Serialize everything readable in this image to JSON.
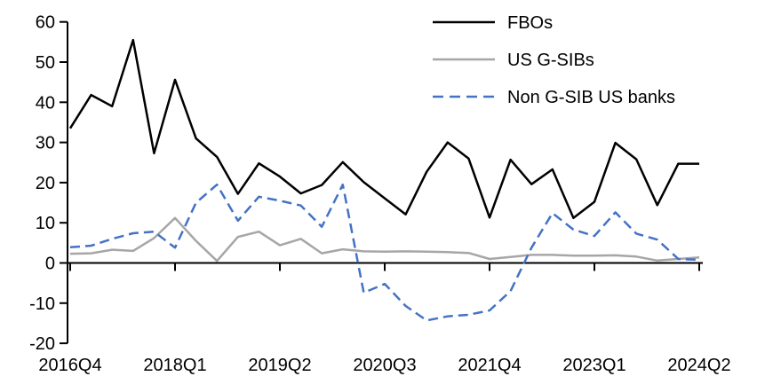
{
  "chart_data": {
    "type": "line",
    "title": "",
    "xlabel": "",
    "ylabel": "",
    "grid": false,
    "legend_position": "top-right",
    "ylim": [
      -20,
      60
    ],
    "y_ticks": [
      60,
      50,
      40,
      30,
      20,
      10,
      0,
      -10,
      -20
    ],
    "categories": [
      "2016Q4",
      "2017Q1",
      "2017Q2",
      "2017Q3",
      "2017Q4",
      "2018Q1",
      "2018Q2",
      "2018Q3",
      "2018Q4",
      "2019Q1",
      "2019Q2",
      "2019Q3",
      "2019Q4",
      "2020Q1",
      "2020Q2",
      "2020Q3",
      "2020Q4",
      "2021Q1",
      "2021Q2",
      "2021Q3",
      "2021Q4",
      "2022Q1",
      "2022Q2",
      "2022Q3",
      "2022Q4",
      "2023Q1",
      "2023Q2",
      "2023Q3",
      "2023Q4",
      "2024Q1",
      "2024Q2"
    ],
    "x_tick_labels": [
      "2016Q4",
      "2018Q1",
      "2019Q2",
      "2020Q3",
      "2021Q4",
      "2023Q1",
      "2024Q2"
    ],
    "x_tick_indices": [
      0,
      5,
      10,
      15,
      20,
      25,
      30
    ],
    "series": [
      {
        "name": "FBOs",
        "color": "#000000",
        "style": "solid",
        "values": [
          33.5,
          41.8,
          39.0,
          55.5,
          27.3,
          45.6,
          31.0,
          26.4,
          17.2,
          24.8,
          21.5,
          17.3,
          19.4,
          25.1,
          20.1,
          16.1,
          12.1,
          22.7,
          30.0,
          26.0,
          11.3,
          25.7,
          19.6,
          23.3,
          11.2,
          15.2,
          29.9,
          25.8,
          14.4,
          24.7,
          24.7
        ]
      },
      {
        "name": "US G-SIBs",
        "color": "#a6a6a6",
        "style": "solid",
        "values": [
          2.3,
          2.4,
          3.3,
          3.0,
          6.2,
          11.2,
          5.5,
          0.5,
          6.5,
          7.8,
          4.4,
          6.0,
          2.4,
          3.4,
          2.9,
          2.8,
          2.9,
          2.8,
          2.7,
          2.5,
          1.0,
          1.5,
          2.0,
          2.0,
          1.8,
          1.8,
          1.9,
          1.6,
          0.6,
          1.0,
          1.4
        ]
      },
      {
        "name": "Non G-SIB US banks",
        "color": "#4472c4",
        "style": "dashed",
        "values": [
          3.9,
          4.3,
          6.0,
          7.4,
          7.8,
          3.8,
          15.0,
          19.5,
          10.5,
          16.5,
          15.5,
          14.3,
          9.0,
          19.5,
          -7.4,
          -5.2,
          -10.7,
          -14.3,
          -13.3,
          -12.9,
          -11.8,
          -7.0,
          3.8,
          12.4,
          8.3,
          6.7,
          12.6,
          7.3,
          5.8,
          1.0,
          0.8
        ]
      }
    ]
  }
}
